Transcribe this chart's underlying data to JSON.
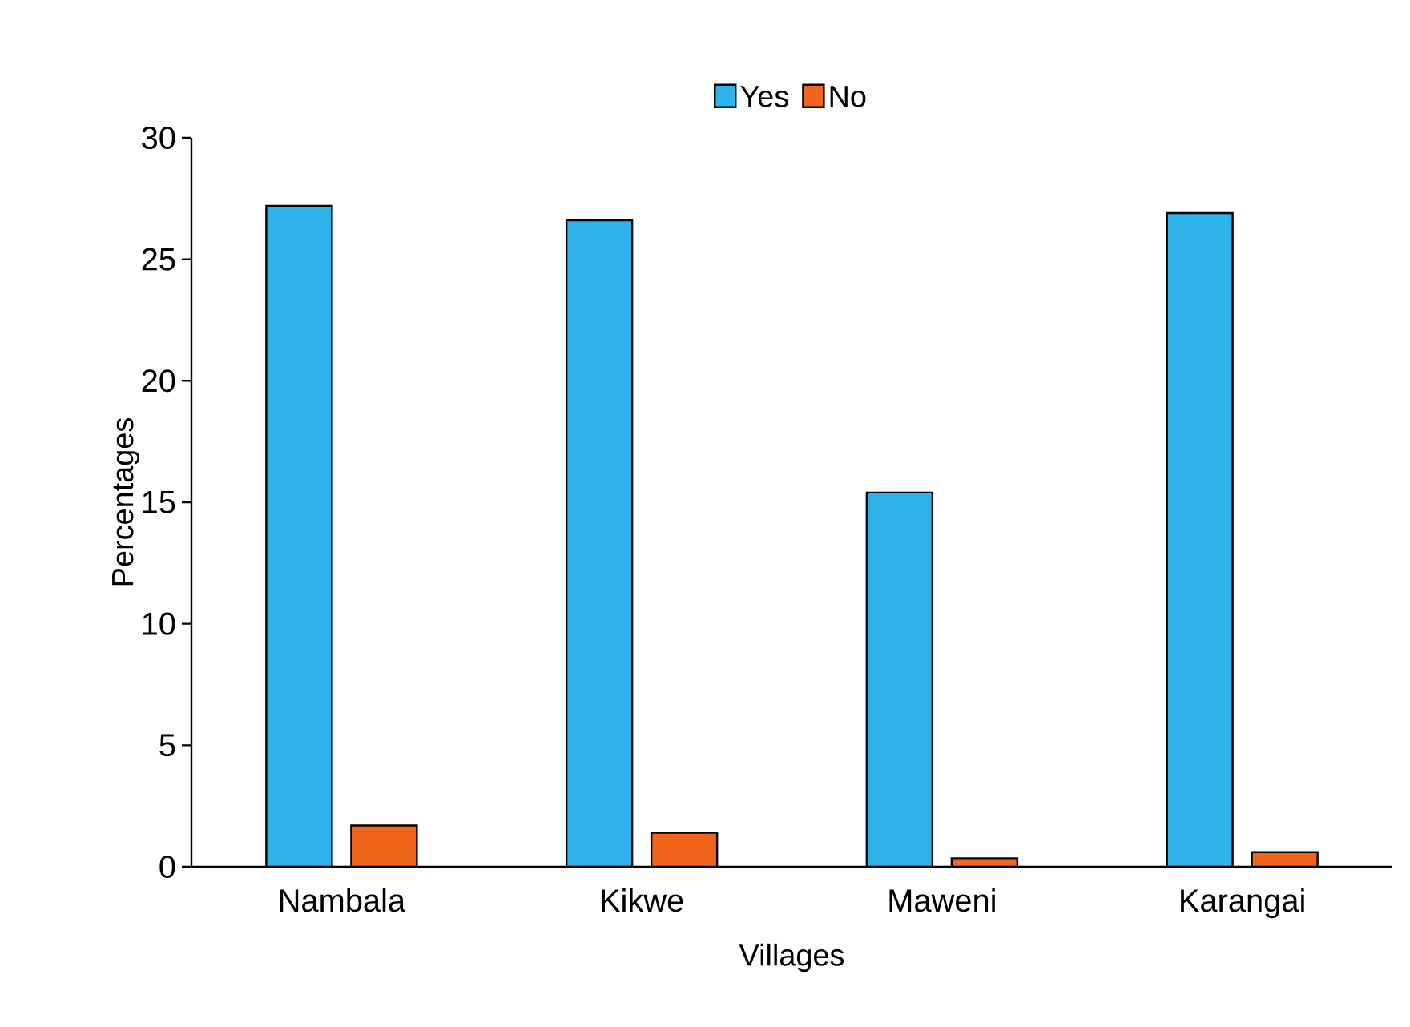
{
  "chart_data": {
    "type": "bar",
    "xlabel": "Villages",
    "ylabel": "Percentages",
    "categories": [
      "Nambala",
      "Kikwe",
      "Maweni",
      "Karangai"
    ],
    "series": [
      {
        "name": "Yes",
        "color": "#2eb2ec",
        "values": [
          27.2,
          26.6,
          15.4,
          26.9
        ]
      },
      {
        "name": "No",
        "color": "#f0641e",
        "values": [
          1.7,
          1.4,
          0.35,
          0.6
        ]
      }
    ],
    "ylim": [
      0,
      30
    ],
    "yticks": [
      0,
      5,
      10,
      15,
      20,
      25,
      30
    ],
    "legend": "top",
    "grid": false
  }
}
